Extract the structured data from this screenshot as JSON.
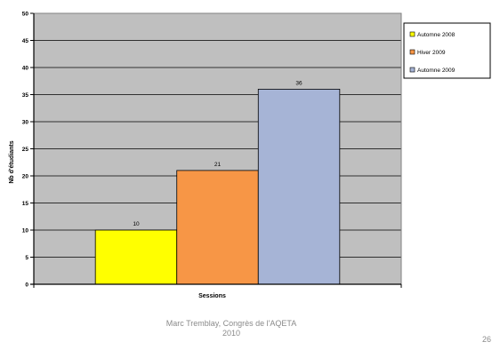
{
  "chart_data": {
    "type": "bar",
    "title": "",
    "xlabel": "Sessions",
    "ylabel": "Nb d'étudiants",
    "ylim": [
      0,
      50
    ],
    "y_ticks": [
      "0",
      "5",
      "10",
      "15",
      "20",
      "25",
      "30",
      "35",
      "40",
      "45",
      "50"
    ],
    "grid": true,
    "legend_position": "right",
    "plot_background": "#bfbfbf",
    "series": [
      {
        "name": "Automne 2008",
        "value": 10,
        "value_label": "10",
        "color": "#ffff00"
      },
      {
        "name": "Hiver 2009",
        "value": 21,
        "value_label": "21",
        "color": "#f79646"
      },
      {
        "name": "Automne 2009",
        "value": 36,
        "value_label": "36",
        "color": "#a6b4d6"
      }
    ]
  },
  "footer": {
    "line1": "Marc Tremblay, Congrès de l'AQETA",
    "line2": "2010"
  },
  "page_number": "26"
}
